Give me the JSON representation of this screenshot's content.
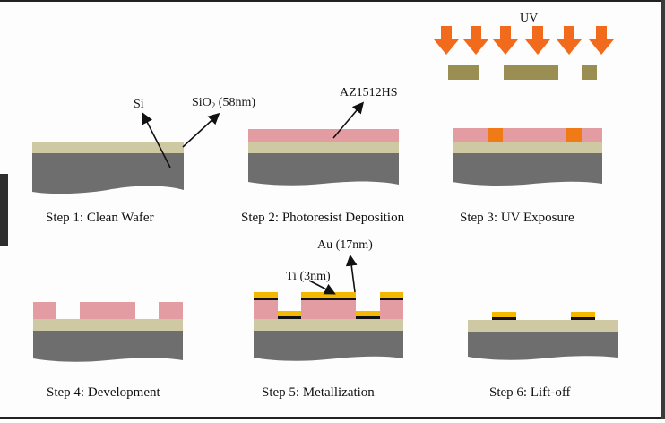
{
  "colors": {
    "silicon": "#6e6e6e",
    "oxide": "#cfc9a3",
    "photoresist": "#e49ca3",
    "exposed_resist": "#f07a16",
    "mask": "#9b8e52",
    "uv_arrow": "#f26b1d",
    "gold": "#f5b800",
    "titanium": "#111111",
    "frame": "#222222"
  },
  "labels": {
    "uv": "UV",
    "si": "Si",
    "sio2_main": "SiO",
    "sio2_sub": "2",
    "sio2_tail": " (58nm)",
    "az": "AZ1512HS",
    "au": "Au (17nm)",
    "ti": "Ti (3nm)"
  },
  "steps": [
    {
      "caption": "Step 1: Clean Wafer"
    },
    {
      "caption": "Step 2: Photoresist Deposition"
    },
    {
      "caption": "Step 3: UV Exposure"
    },
    {
      "caption": "Step 4: Development"
    },
    {
      "caption": "Step 5: Metallization"
    },
    {
      "caption": "Step 6: Lift-off"
    }
  ],
  "icons": [
    "down-arrow-icon"
  ]
}
